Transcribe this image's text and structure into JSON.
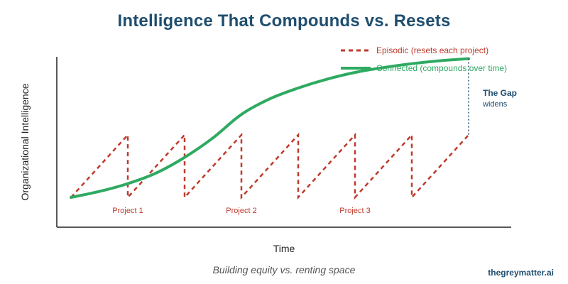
{
  "title": "Intelligence That Compounds vs. Resets",
  "caption": "Building equity vs. renting space",
  "brand": "thegreymatter.ai",
  "colors": {
    "title": "#1f4e6f",
    "episodic": "#c0392b",
    "connected": "#2eaa62",
    "gap": "#1f4e6f",
    "axis": "#222222"
  },
  "chart_data": {
    "type": "line",
    "xlabel": "Time",
    "ylabel": "Organizational Intelligence",
    "xlim": [
      0,
      14
    ],
    "ylim": [
      0,
      10
    ],
    "legend_position": "top-right",
    "grid": false,
    "series": [
      {
        "name": "Episodic (resets each project)",
        "style": "dashed",
        "color": "#c0392b",
        "x": [
          0,
          2,
          2,
          4,
          4,
          6,
          6,
          8,
          8,
          10,
          10,
          12,
          12,
          14
        ],
        "y": [
          1.0,
          5.0,
          1.0,
          5.0,
          1.0,
          5.0,
          1.0,
          5.0,
          1.0,
          5.0,
          1.0,
          5.0,
          1.0,
          5.0
        ]
      },
      {
        "name": "Connected (compounds over time)",
        "style": "solid",
        "color": "#2eaa62",
        "x": [
          0,
          1,
          2,
          3,
          4,
          5,
          6,
          7,
          8,
          9,
          10,
          11,
          12,
          13,
          14
        ],
        "y": [
          1.0,
          1.38,
          1.88,
          2.56,
          3.56,
          4.81,
          6.31,
          7.31,
          8.0,
          8.56,
          9.0,
          9.31,
          9.56,
          9.75,
          9.88
        ]
      }
    ],
    "annotations": {
      "projects": [
        {
          "label": "Project 1",
          "x": 2
        },
        {
          "label": "Project 2",
          "x": 6
        },
        {
          "label": "Project 3",
          "x": 10
        }
      ],
      "gap": {
        "title": "The Gap",
        "subtitle": "widens",
        "x": 14
      }
    }
  }
}
